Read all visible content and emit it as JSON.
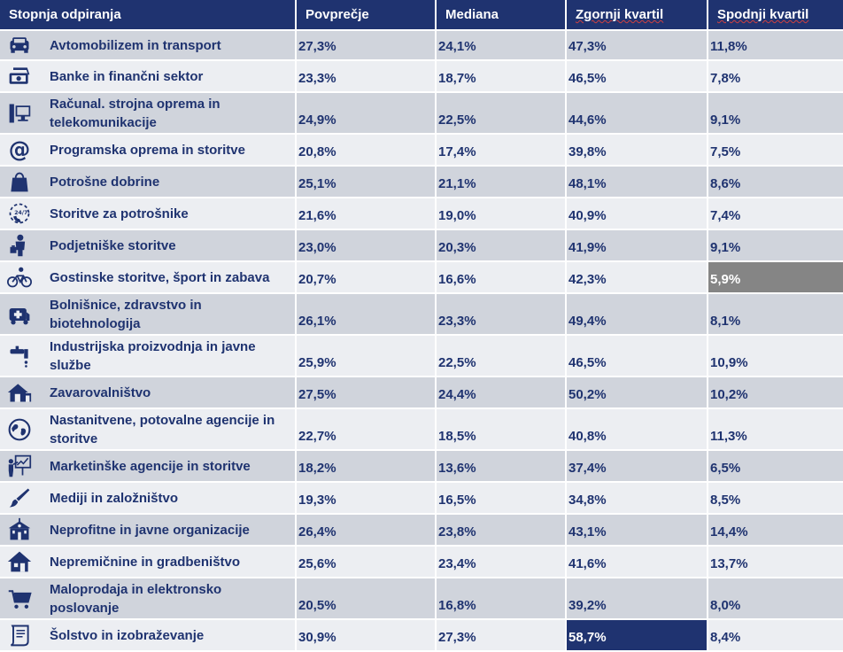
{
  "headers": [
    "Stopnja odpiranja",
    "Povprečje",
    "Mediana",
    "Zgornji kvartil",
    "Spodnji kvartil"
  ],
  "highlight_colors": {
    "dark": "#1f3370",
    "gray": "#858585"
  },
  "rows": [
    {
      "icon": "car-icon",
      "label": "Avtomobilizem in transport",
      "avg": "27,3%",
      "median": "24,1%",
      "upper": "47,3%",
      "lower": "11,8%"
    },
    {
      "icon": "money-icon",
      "label": "Banke in finančni sektor",
      "avg": "23,3%",
      "median": "18,7%",
      "upper": "46,5%",
      "lower": "7,8%"
    },
    {
      "icon": "computer-icon",
      "label": "Računal. strojna oprema in telekomunikacije",
      "avg": "24,9%",
      "median": "22,5%",
      "upper": "44,6%",
      "lower": "9,1%"
    },
    {
      "icon": "at-sign-icon",
      "label": "Programska oprema in storitve",
      "avg": "20,8%",
      "median": "17,4%",
      "upper": "39,8%",
      "lower": "7,5%"
    },
    {
      "icon": "shopping-bag-icon",
      "label": "Potrošne dobrine",
      "avg": "25,1%",
      "median": "21,1%",
      "upper": "48,1%",
      "lower": "8,6%"
    },
    {
      "icon": "phone-24-7-icon",
      "label": "Storitve za potrošnike",
      "avg": "21,6%",
      "median": "19,0%",
      "upper": "40,9%",
      "lower": "7,4%"
    },
    {
      "icon": "businessman-icon",
      "label": "Podjetniške storitve",
      "avg": "23,0%",
      "median": "20,3%",
      "upper": "41,9%",
      "lower": "9,1%"
    },
    {
      "icon": "bicycle-icon",
      "label": "Gostinske storitve, šport in zabava",
      "avg": "20,7%",
      "median": "16,6%",
      "upper": "42,3%",
      "lower": "5,9%",
      "lower_highlight": "gray"
    },
    {
      "icon": "ambulance-icon",
      "label": "Bolnišnice, zdravstvo in biotehnologija",
      "avg": "26,1%",
      "median": "23,3%",
      "upper": "49,4%",
      "lower": "8,1%"
    },
    {
      "icon": "faucet-icon",
      "label": "Industrijska proizvodnja in javne službe",
      "avg": "25,9%",
      "median": "22,5%",
      "upper": "46,5%",
      "lower": "10,9%"
    },
    {
      "icon": "house-garage-icon",
      "label": "Zavarovalništvo",
      "avg": "27,5%",
      "median": "24,4%",
      "upper": "50,2%",
      "lower": "10,2%"
    },
    {
      "icon": "globe-icon",
      "label": "Nastanitvene, potovalne agencije in storitve",
      "avg": "22,7%",
      "median": "18,5%",
      "upper": "40,8%",
      "lower": "11,3%"
    },
    {
      "icon": "presentation-icon",
      "label": "Marketinške agencije in storitve",
      "avg": "18,2%",
      "median": "13,6%",
      "upper": "37,4%",
      "lower": "6,5%"
    },
    {
      "icon": "brush-icon",
      "label": "Mediji in založništvo",
      "avg": "19,3%",
      "median": "16,5%",
      "upper": "34,8%",
      "lower": "8,5%"
    },
    {
      "icon": "school-building-icon",
      "label": "Neprofitne in javne organizacije",
      "avg": "26,4%",
      "median": "23,8%",
      "upper": "43,1%",
      "lower": "14,4%"
    },
    {
      "icon": "house-icon",
      "label": "Nepremičnine in gradbeništvo",
      "avg": "25,6%",
      "median": "23,4%",
      "upper": "41,6%",
      "lower": "13,7%"
    },
    {
      "icon": "shopping-cart-icon",
      "label": "Maloprodaja in elektronsko poslovanje",
      "avg": "20,5%",
      "median": "16,8%",
      "upper": "39,2%",
      "lower": "8,0%"
    },
    {
      "icon": "scroll-icon",
      "label": "Šolstvo in izobraževanje",
      "avg": "30,9%",
      "median": "27,3%",
      "upper": "58,7%",
      "lower": "8,4%",
      "upper_highlight": "dark"
    }
  ]
}
